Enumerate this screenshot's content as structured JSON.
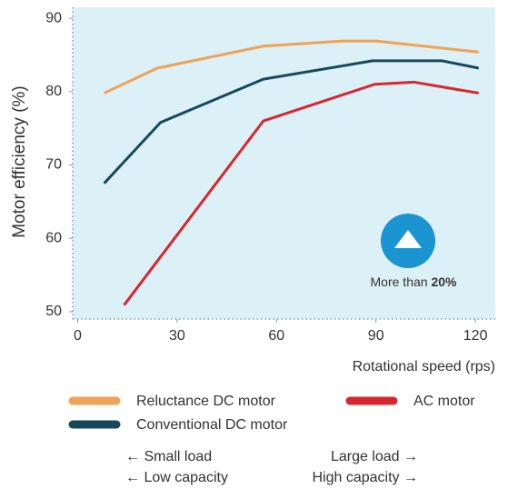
{
  "chart_data": {
    "type": "line",
    "y_label": "Motor efficiency (%)",
    "x_label": "Rotational speed (rps)",
    "xlim": [
      -1.5,
      126
    ],
    "ylim": [
      49,
      91.5
    ],
    "xticks": [
      0,
      30,
      60,
      90,
      120
    ],
    "yticks": [
      50,
      60,
      70,
      80,
      90
    ],
    "background": "#dcf0f7",
    "series": [
      {
        "name": "Reluctance DC motor",
        "color": "#f0a256",
        "x": [
          8,
          24,
          56,
          80,
          90,
          121
        ],
        "values": [
          79.8,
          83.2,
          86.2,
          86.9,
          86.9,
          85.4
        ]
      },
      {
        "name": "Conventional DC motor",
        "color": "#17495a",
        "x": [
          8,
          25,
          56,
          89,
          110,
          121
        ],
        "values": [
          67.5,
          75.8,
          81.7,
          84.2,
          84.2,
          83.2
        ]
      },
      {
        "name": "AC motor",
        "color": "#d8262f",
        "x": [
          14,
          56,
          89.6,
          101.4,
          121
        ],
        "values": [
          50.9,
          76.0,
          81.0,
          81.3,
          79.8
        ]
      }
    ],
    "annotation": {
      "prefix": "More than ",
      "emphasis": "20%"
    },
    "footer": {
      "left": [
        "← Small load",
        "← Low capacity"
      ],
      "right": [
        "Large load →",
        "High capacity →"
      ]
    }
  }
}
